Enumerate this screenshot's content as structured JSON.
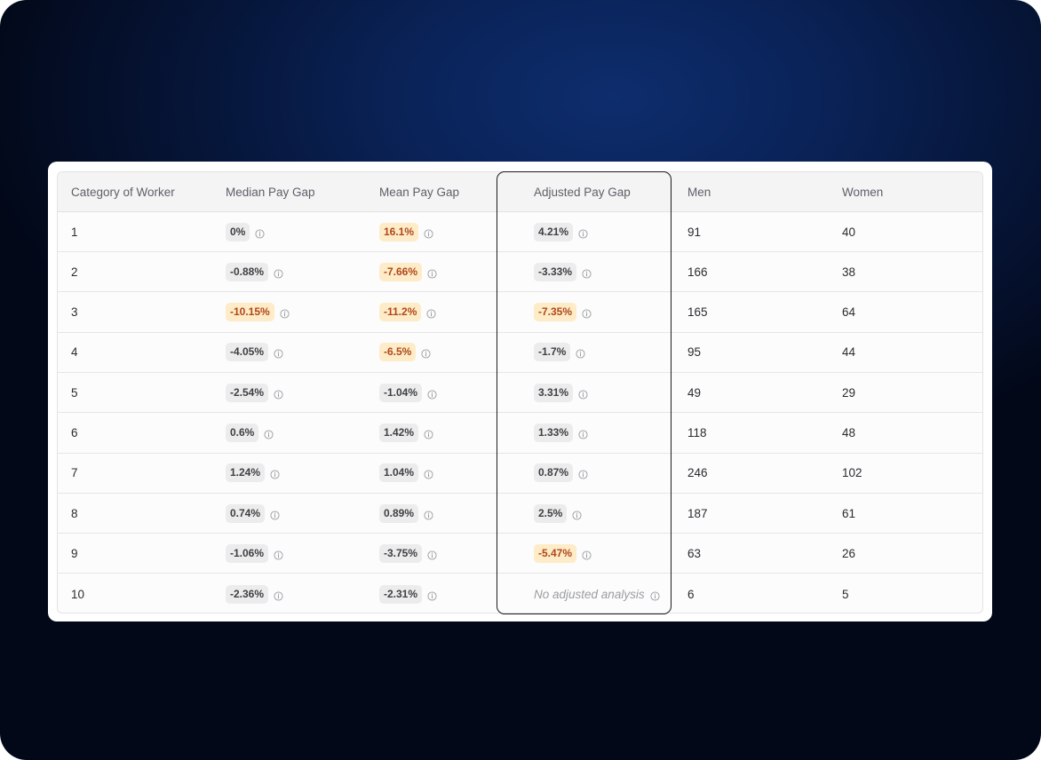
{
  "table": {
    "headers": [
      "Category of Worker",
      "Median Pay Gap",
      "Mean Pay Gap",
      "Adjusted Pay Gap",
      "Men",
      "Women"
    ],
    "rows": [
      {
        "category": "1",
        "median": {
          "value": "0%",
          "warn": false
        },
        "mean": {
          "value": "16.1%",
          "warn": true
        },
        "adjusted": {
          "value": "4.21%",
          "warn": false
        },
        "men": "91",
        "women": "40"
      },
      {
        "category": "2",
        "median": {
          "value": "-0.88%",
          "warn": false
        },
        "mean": {
          "value": "-7.66%",
          "warn": true
        },
        "adjusted": {
          "value": "-3.33%",
          "warn": false
        },
        "men": "166",
        "women": "38"
      },
      {
        "category": "3",
        "median": {
          "value": "-10.15%",
          "warn": true
        },
        "mean": {
          "value": "-11.2%",
          "warn": true
        },
        "adjusted": {
          "value": "-7.35%",
          "warn": true
        },
        "men": "165",
        "women": "64"
      },
      {
        "category": "4",
        "median": {
          "value": "-4.05%",
          "warn": false
        },
        "mean": {
          "value": "-6.5%",
          "warn": true
        },
        "adjusted": {
          "value": "-1.7%",
          "warn": false
        },
        "men": "95",
        "women": "44"
      },
      {
        "category": "5",
        "median": {
          "value": "-2.54%",
          "warn": false
        },
        "mean": {
          "value": "-1.04%",
          "warn": false
        },
        "adjusted": {
          "value": "3.31%",
          "warn": false
        },
        "men": "49",
        "women": "29"
      },
      {
        "category": "6",
        "median": {
          "value": "0.6%",
          "warn": false
        },
        "mean": {
          "value": "1.42%",
          "warn": false
        },
        "adjusted": {
          "value": "1.33%",
          "warn": false
        },
        "men": "118",
        "women": "48"
      },
      {
        "category": "7",
        "median": {
          "value": "1.24%",
          "warn": false
        },
        "mean": {
          "value": "1.04%",
          "warn": false
        },
        "adjusted": {
          "value": "0.87%",
          "warn": false
        },
        "men": "246",
        "women": "102"
      },
      {
        "category": "8",
        "median": {
          "value": "0.74%",
          "warn": false
        },
        "mean": {
          "value": "0.89%",
          "warn": false
        },
        "adjusted": {
          "value": "2.5%",
          "warn": false
        },
        "men": "187",
        "women": "61"
      },
      {
        "category": "9",
        "median": {
          "value": "-1.06%",
          "warn": false
        },
        "mean": {
          "value": "-3.75%",
          "warn": false
        },
        "adjusted": {
          "value": "-5.47%",
          "warn": true
        },
        "men": "63",
        "women": "26"
      },
      {
        "category": "10",
        "median": {
          "value": "-2.36%",
          "warn": false
        },
        "mean": {
          "value": "-2.31%",
          "warn": false
        },
        "adjusted": {
          "value": null,
          "note": "No adjusted analysis",
          "warn": false
        },
        "men": "6",
        "women": "5"
      }
    ]
  },
  "icons": {
    "info": "info-circle-icon"
  },
  "colors": {
    "badge_neutral_bg": "#ececec",
    "badge_warn_bg": "#fdecc7",
    "badge_warn_text": "#b0481a",
    "highlight_border": "#1c1c1f"
  }
}
